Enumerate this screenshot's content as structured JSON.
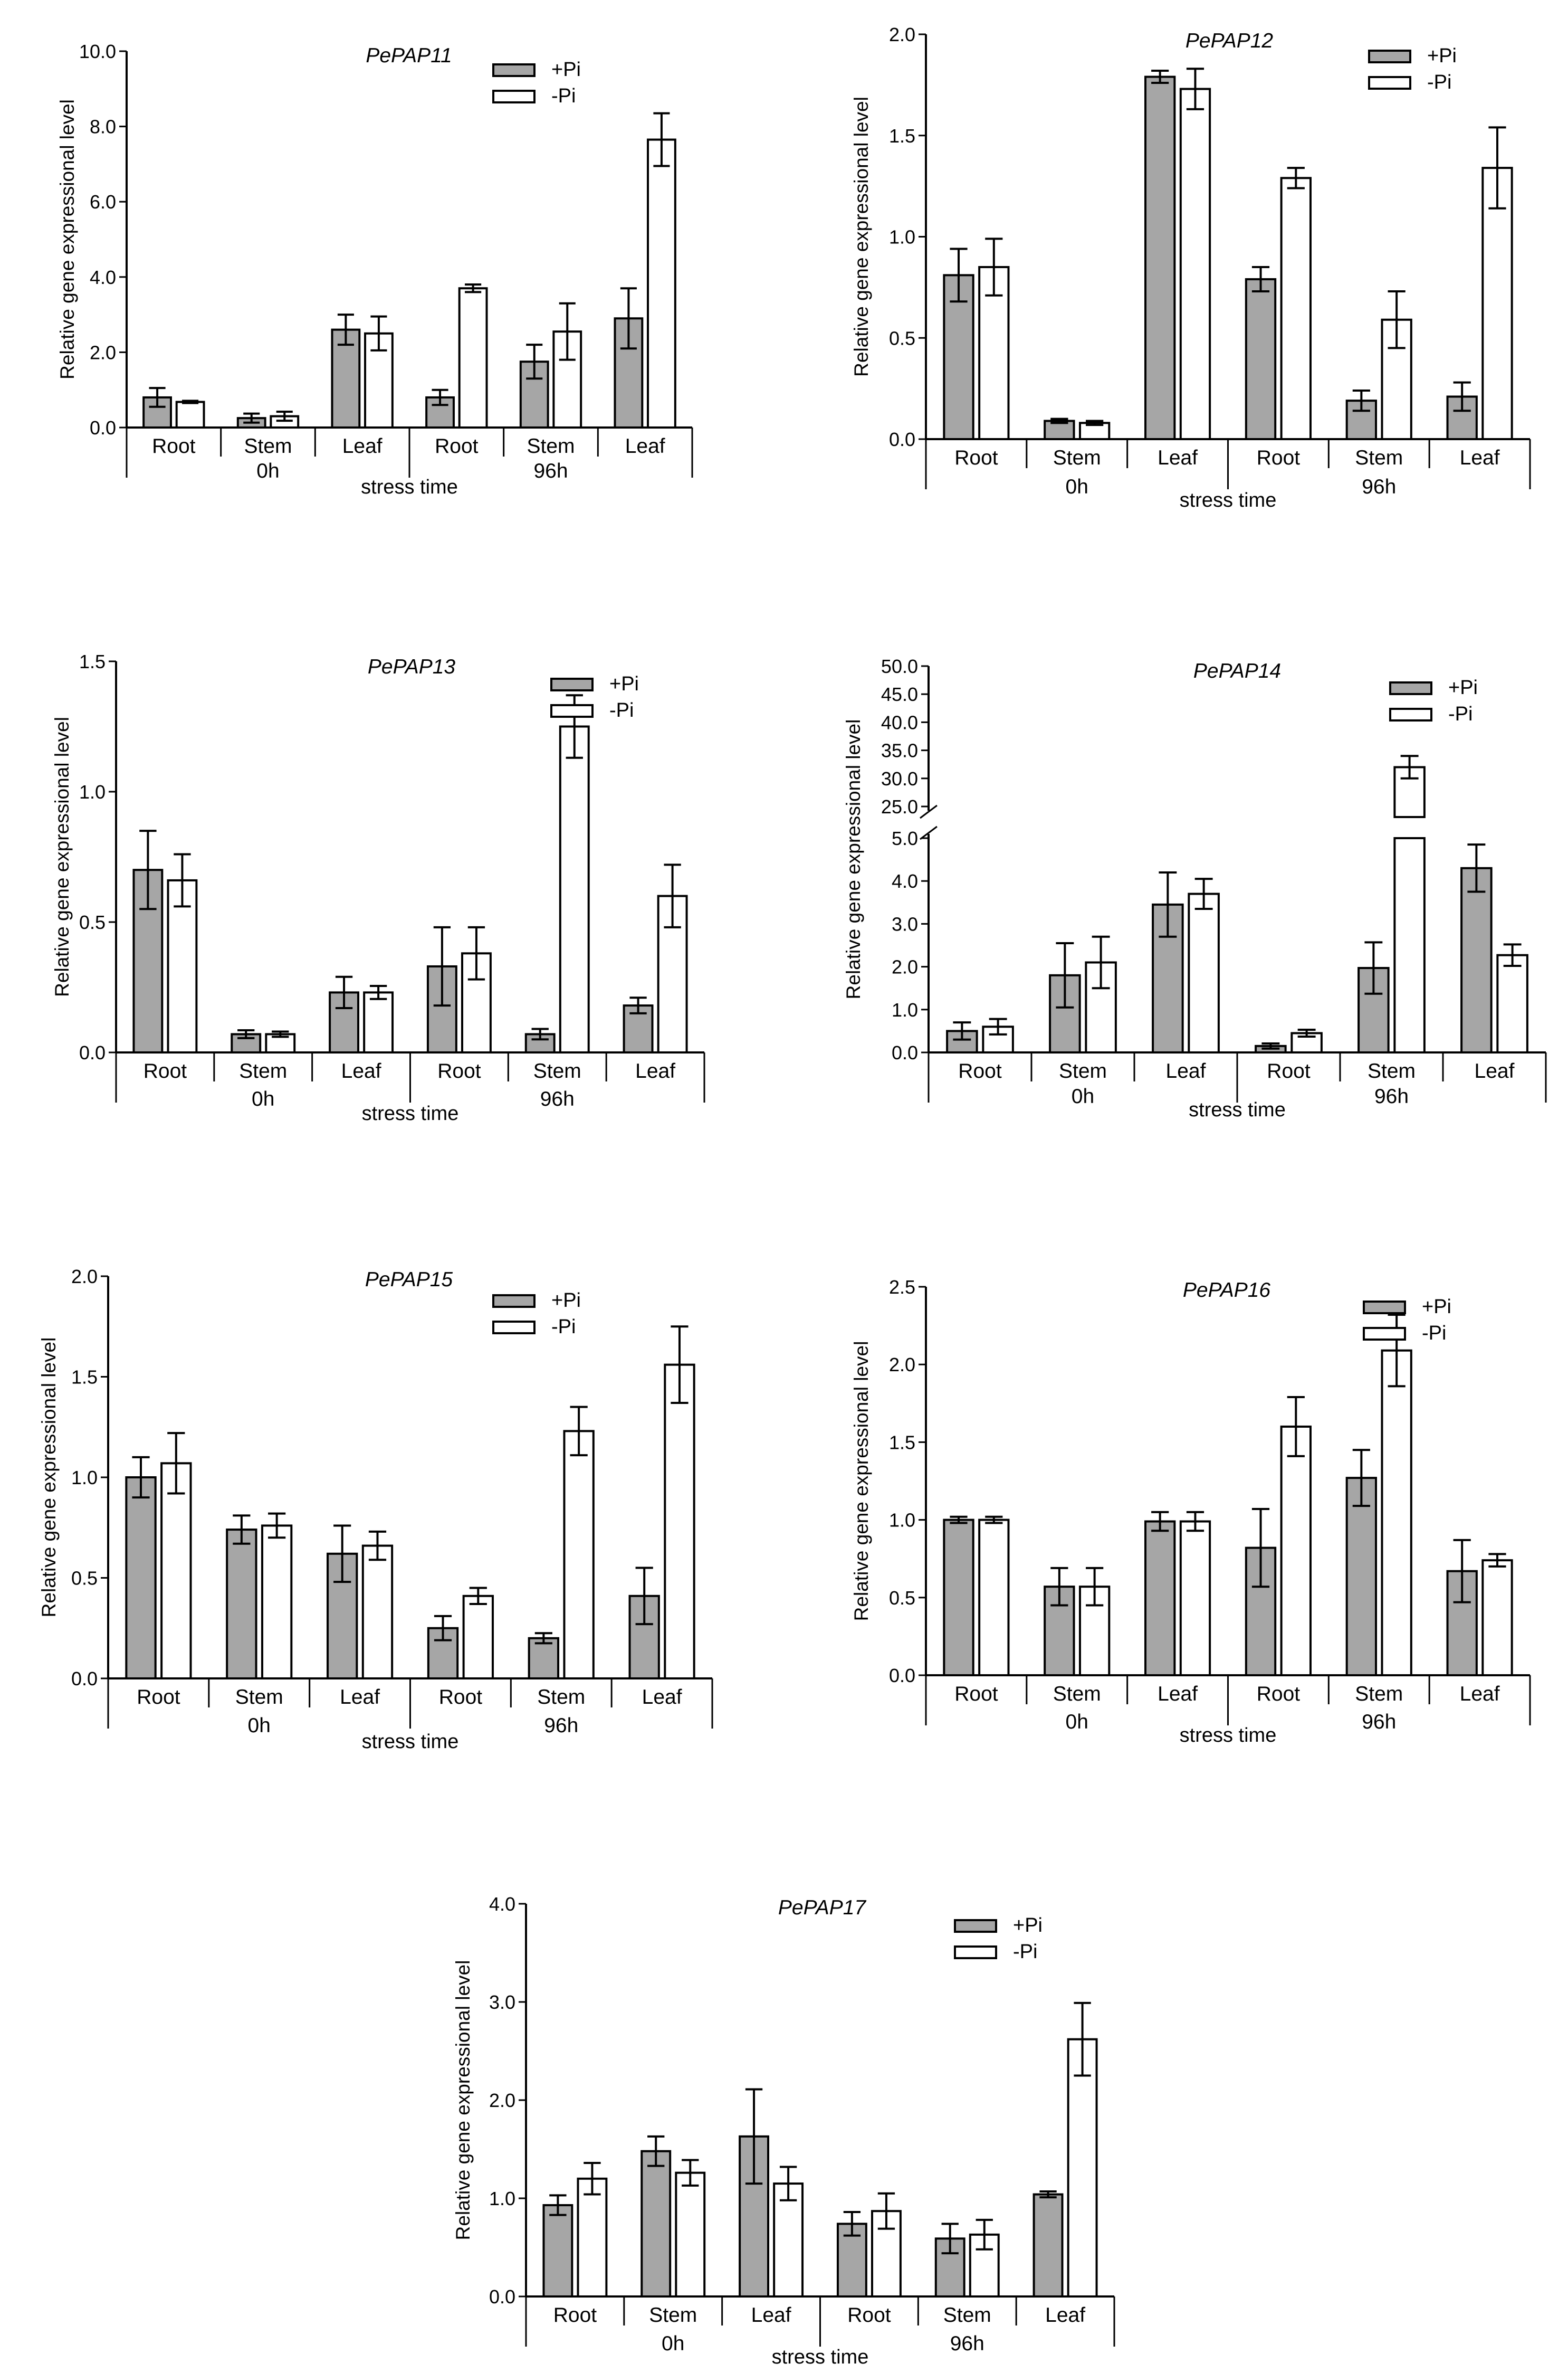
{
  "figure": {
    "ylabel": "Relative gene expressional level",
    "xlabel": "stress time",
    "groups": [
      "0h",
      "96h"
    ],
    "tissues": [
      "Root",
      "Stem",
      "Leaf",
      "Root",
      "Stem",
      "Leaf"
    ],
    "legend": [
      "+Pi",
      "-Pi"
    ]
  },
  "colors": {
    "plus_pi": "#a6a6a6",
    "minus_pi": "#ffffff",
    "axis": "#000000"
  },
  "chart_data": [
    {
      "type": "bar",
      "title": "PePAP11",
      "xlabel": "stress time",
      "ylabel": "Relative gene expressional level",
      "categories": [
        "Root",
        "Stem",
        "Leaf",
        "Root",
        "Stem",
        "Leaf"
      ],
      "groups": [
        "0h",
        "96h"
      ],
      "ylim": [
        0,
        10
      ],
      "ytick_labels": [
        "0.0",
        "2.0",
        "4.0",
        "6.0",
        "8.0",
        "10.0"
      ],
      "legend_position": "top-right",
      "series": [
        {
          "name": "+Pi",
          "values": [
            0.8,
            0.25,
            2.6,
            0.8,
            1.75,
            2.9
          ],
          "errors": [
            0.25,
            0.12,
            0.4,
            0.2,
            0.45,
            0.8
          ]
        },
        {
          "name": "-Pi",
          "values": [
            0.68,
            0.3,
            2.5,
            3.7,
            2.55,
            7.65
          ],
          "errors": [
            0.03,
            0.12,
            0.45,
            0.1,
            0.75,
            0.7
          ]
        }
      ]
    },
    {
      "type": "bar",
      "title": "PePAP12",
      "xlabel": "stress time",
      "ylabel": "Relative gene expressional level",
      "categories": [
        "Root",
        "Stem",
        "Leaf",
        "Root",
        "Stem",
        "Leaf"
      ],
      "groups": [
        "0h",
        "96h"
      ],
      "ylim": [
        0,
        2
      ],
      "ytick_labels": [
        "0.0",
        "0.5",
        "1.0",
        "1.5",
        "2.0"
      ],
      "legend_position": "top-right",
      "series": [
        {
          "name": "+Pi",
          "values": [
            0.81,
            0.09,
            1.79,
            0.79,
            0.19,
            0.21
          ],
          "errors": [
            0.13,
            0.01,
            0.03,
            0.06,
            0.05,
            0.07
          ]
        },
        {
          "name": "-Pi",
          "values": [
            0.85,
            0.08,
            1.73,
            1.29,
            0.59,
            1.34
          ],
          "errors": [
            0.14,
            0.01,
            0.1,
            0.05,
            0.14,
            0.2
          ]
        }
      ]
    },
    {
      "type": "bar",
      "title": "PePAP13",
      "xlabel": "stress time",
      "ylabel": "Relative gene expressional level",
      "categories": [
        "Root",
        "Stem",
        "Leaf",
        "Root",
        "Stem",
        "Leaf"
      ],
      "groups": [
        "0h",
        "96h"
      ],
      "ylim": [
        0,
        1.5
      ],
      "ytick_labels": [
        "0.0",
        "0.5",
        "1.0",
        "1.5"
      ],
      "legend_position": "top-right",
      "series": [
        {
          "name": "+Pi",
          "values": [
            0.7,
            0.07,
            0.23,
            0.33,
            0.07,
            0.18
          ],
          "errors": [
            0.15,
            0.015,
            0.06,
            0.15,
            0.02,
            0.03
          ]
        },
        {
          "name": "-Pi",
          "values": [
            0.66,
            0.07,
            0.23,
            0.38,
            1.25,
            0.6
          ],
          "errors": [
            0.1,
            0.01,
            0.025,
            0.1,
            0.12,
            0.12
          ]
        }
      ]
    },
    {
      "type": "bar",
      "title": "PePAP14",
      "xlabel": "stress time",
      "ylabel": "Relative gene expressional level",
      "categories": [
        "Root",
        "Stem",
        "Leaf",
        "Root",
        "Stem",
        "Leaf"
      ],
      "groups": [
        "0h",
        "96h"
      ],
      "ylim": [
        0,
        50
      ],
      "axis_break": [
        5,
        25
      ],
      "ytick_labels": [
        "0.0",
        "1.0",
        "2.0",
        "3.0",
        "4.0",
        "5.0",
        "25.0",
        "30.0",
        "35.0",
        "40.0",
        "45.0",
        "50.0"
      ],
      "legend_position": "top-right",
      "series": [
        {
          "name": "+Pi",
          "values": [
            0.5,
            1.8,
            3.45,
            0.15,
            1.97,
            4.3
          ],
          "errors": [
            0.2,
            0.75,
            0.75,
            0.06,
            0.6,
            0.55
          ]
        },
        {
          "name": "-Pi",
          "values": [
            0.6,
            2.1,
            3.7,
            0.45,
            32.0,
            2.27
          ],
          "errors": [
            0.18,
            0.6,
            0.35,
            0.08,
            2.0,
            0.25
          ]
        }
      ]
    },
    {
      "type": "bar",
      "title": "PePAP15",
      "xlabel": "stress time",
      "ylabel": "Relative gene expressional level",
      "categories": [
        "Root",
        "Stem",
        "Leaf",
        "Root",
        "Stem",
        "Leaf"
      ],
      "groups": [
        "0h",
        "96h"
      ],
      "ylim": [
        0,
        2
      ],
      "ytick_labels": [
        "0.0",
        "0.5",
        "1.0",
        "1.5",
        "2.0"
      ],
      "legend_position": "top-right",
      "series": [
        {
          "name": "+Pi",
          "values": [
            1.0,
            0.74,
            0.62,
            0.25,
            0.2,
            0.41
          ],
          "errors": [
            0.1,
            0.07,
            0.14,
            0.06,
            0.025,
            0.14
          ]
        },
        {
          "name": "-Pi",
          "values": [
            1.07,
            0.76,
            0.66,
            0.41,
            1.23,
            1.56
          ],
          "errors": [
            0.15,
            0.06,
            0.07,
            0.04,
            0.12,
            0.19
          ]
        }
      ]
    },
    {
      "type": "bar",
      "title": "PePAP16",
      "xlabel": "stress time",
      "ylabel": "Relative gene expressional level",
      "categories": [
        "Root",
        "Stem",
        "Leaf",
        "Root",
        "Stem",
        "Leaf"
      ],
      "groups": [
        "0h",
        "96h"
      ],
      "ylim": [
        0,
        2.5
      ],
      "ytick_labels": [
        "0.0",
        "0.5",
        "1.0",
        "1.5",
        "2.0",
        "2.5"
      ],
      "legend_position": "top-right",
      "series": [
        {
          "name": "+Pi",
          "values": [
            1.0,
            0.57,
            0.99,
            0.82,
            1.27,
            0.67
          ],
          "errors": [
            0.02,
            0.12,
            0.06,
            0.25,
            0.18,
            0.2
          ]
        },
        {
          "name": "-Pi",
          "values": [
            1.0,
            0.57,
            0.99,
            1.6,
            2.09,
            0.74
          ],
          "errors": [
            0.02,
            0.12,
            0.06,
            0.19,
            0.23,
            0.04
          ]
        }
      ]
    },
    {
      "type": "bar",
      "title": "PePAP17",
      "xlabel": "stress time",
      "ylabel": "Relative gene expressional level",
      "categories": [
        "Root",
        "Stem",
        "Leaf",
        "Root",
        "Stem",
        "Leaf"
      ],
      "groups": [
        "0h",
        "96h"
      ],
      "ylim": [
        0,
        4
      ],
      "ytick_labels": [
        "0.0",
        "1.0",
        "2.0",
        "3.0",
        "4.0"
      ],
      "legend_position": "top-right",
      "series": [
        {
          "name": "+Pi",
          "values": [
            0.93,
            1.48,
            1.63,
            0.74,
            0.59,
            1.04
          ],
          "errors": [
            0.1,
            0.15,
            0.48,
            0.12,
            0.15,
            0.03
          ]
        },
        {
          "name": "-Pi",
          "values": [
            1.2,
            1.26,
            1.15,
            0.87,
            0.63,
            2.62
          ],
          "errors": [
            0.16,
            0.13,
            0.17,
            0.18,
            0.15,
            0.37
          ]
        }
      ]
    }
  ]
}
